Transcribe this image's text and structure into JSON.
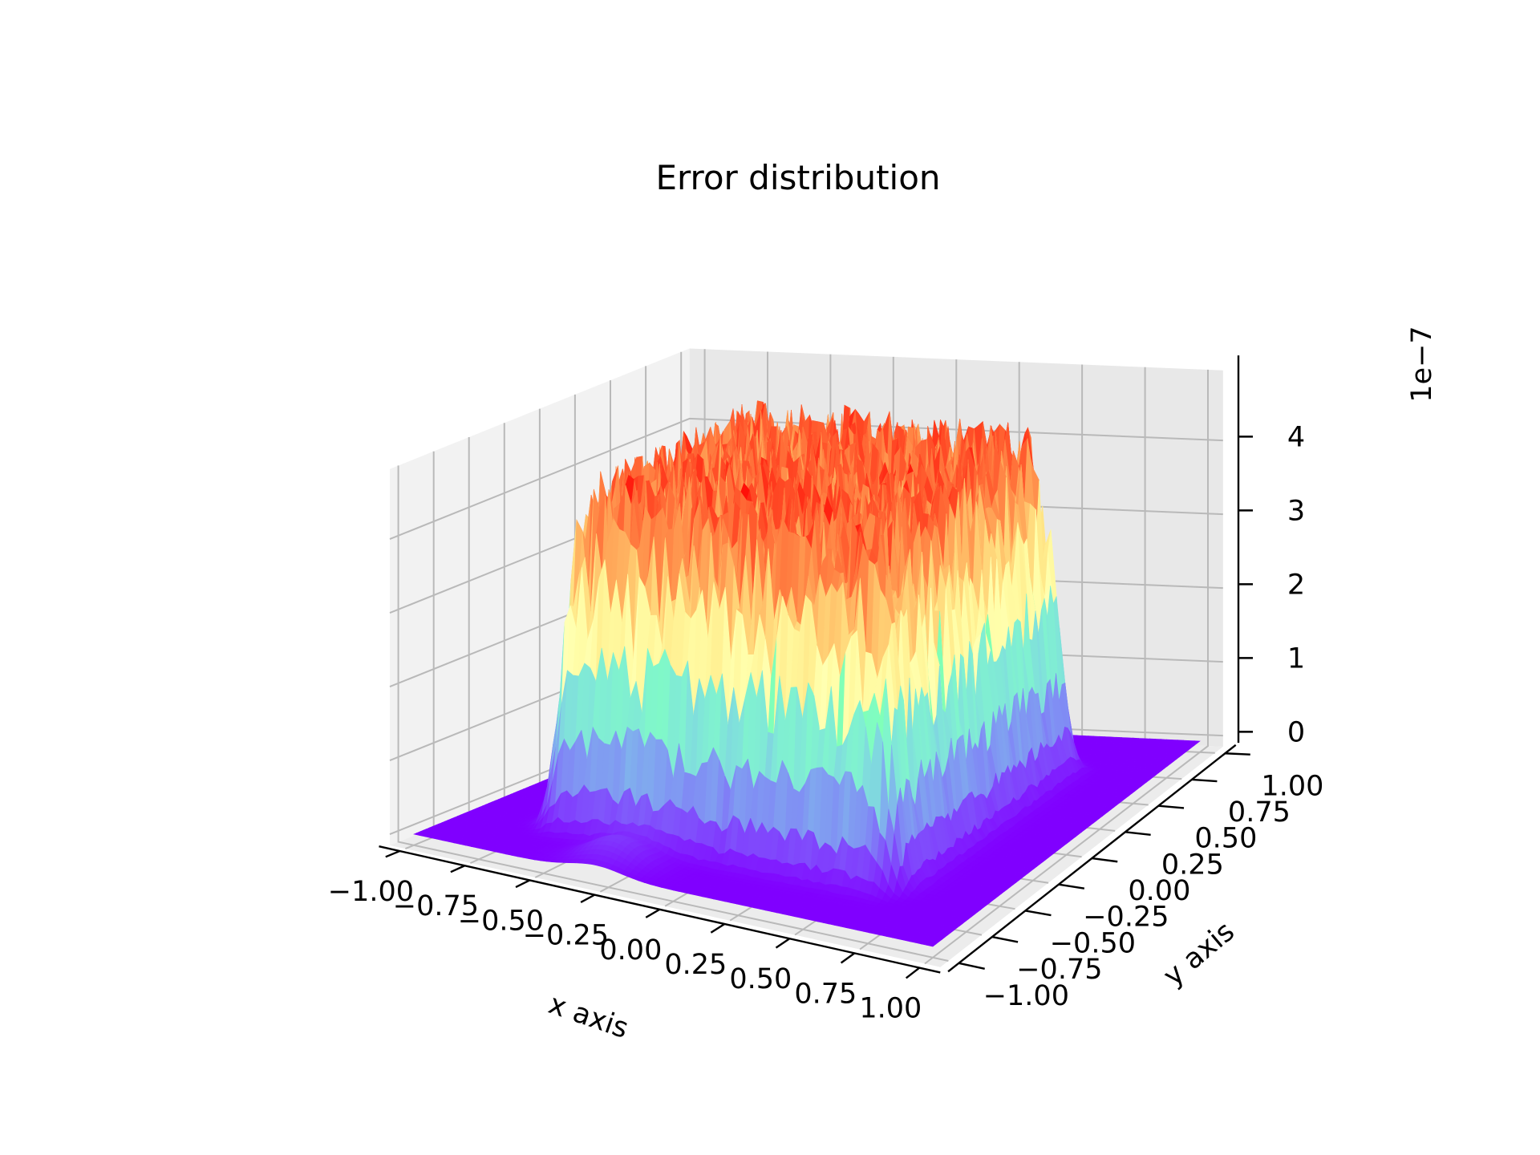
{
  "chart_data": {
    "type": "surface3d",
    "title": "Error distribution",
    "xlabel": "x axis",
    "ylabel": "y axis",
    "zlabel": "",
    "z_offset_label": "1e−7",
    "x_ticks": [
      "−1.00",
      "−0.75",
      "−0.50",
      "−0.25",
      "0.00",
      "0.25",
      "0.50",
      "0.75",
      "1.00"
    ],
    "y_ticks": [
      "−1.00",
      "−0.75",
      "−0.50",
      "−0.25",
      "0.00",
      "0.25",
      "0.50",
      "0.75",
      "1.00"
    ],
    "z_ticks": [
      "0",
      "1",
      "2",
      "3",
      "4"
    ],
    "xlim": [
      -1.0,
      1.0
    ],
    "ylim": [
      -1.0,
      1.0
    ],
    "zlim": [
      0,
      4.9
    ],
    "z_scale": 1e-07,
    "colormap": "rainbow",
    "grid": true,
    "plateau": {
      "x_range": [
        -0.65,
        0.65
      ],
      "y_range": [
        -0.65,
        0.65
      ],
      "z_max": 4.9,
      "z_floor": 0.0
    },
    "colors": {
      "pane": "#f2f2f2",
      "grid": "#b9b9b9",
      "low": "#8000ff",
      "high": "#ff0000"
    }
  }
}
